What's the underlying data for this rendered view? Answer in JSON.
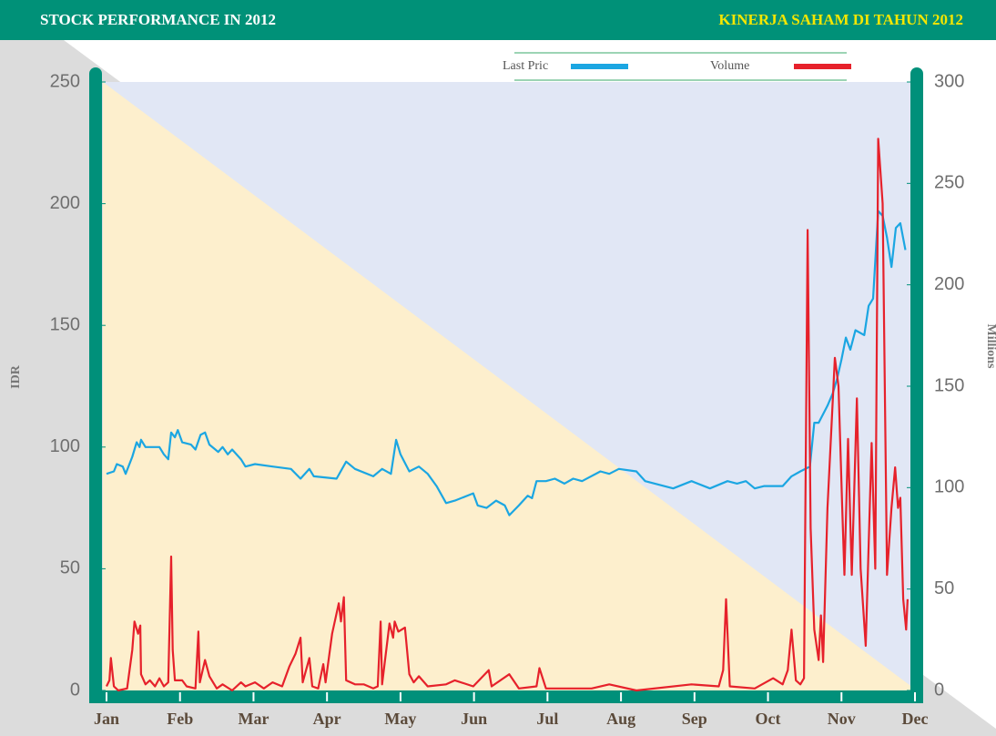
{
  "chart_data": {
    "type": "line",
    "title": "STOCK PERFORMANCE IN 2012",
    "subtitle": "KINERJA SAHAM DI TAHUN 2012",
    "y_label": "IDR",
    "y2_label": "Millions",
    "xlim": [
      0,
      11
    ],
    "xticks": [
      {
        "value": 0,
        "label": "Jan"
      },
      {
        "value": 1,
        "label": "Feb"
      },
      {
        "value": 2,
        "label": "Mar"
      },
      {
        "value": 3,
        "label": "Apr"
      },
      {
        "value": 4,
        "label": "May"
      },
      {
        "value": 5,
        "label": "Jun"
      },
      {
        "value": 6,
        "label": "Jul"
      },
      {
        "value": 7,
        "label": "Aug"
      },
      {
        "value": 8,
        "label": "Sep"
      },
      {
        "value": 9,
        "label": "Oct"
      },
      {
        "value": 10,
        "label": "Nov"
      },
      {
        "value": 11,
        "label": "Dec"
      }
    ],
    "ylim": [
      0,
      250
    ],
    "yticks": [
      0,
      50,
      100,
      150,
      200,
      250
    ],
    "y2lim": [
      0,
      300
    ],
    "y2ticks": [
      0,
      50,
      100,
      150,
      200,
      250,
      300
    ],
    "legend": "top",
    "series": [
      {
        "name": "Last Pric",
        "color": "#1ba6e2",
        "x": [
          0,
          0.1,
          0.14,
          0.22,
          0.26,
          0.35,
          0.41,
          0.45,
          0.47,
          0.53,
          0.72,
          0.78,
          0.84,
          0.88,
          0.93,
          0.97,
          1.03,
          1.15,
          1.21,
          1.28,
          1.34,
          1.4,
          1.52,
          1.58,
          1.65,
          1.71,
          1.83,
          1.89,
          2.02,
          2.26,
          2.51,
          2.64,
          2.76,
          2.82,
          3.13,
          3.26,
          3.38,
          3.63,
          3.75,
          3.87,
          3.94,
          4.0,
          4.12,
          4.25,
          4.37,
          4.49,
          4.62,
          4.74,
          4.99,
          5.05,
          5.17,
          5.3,
          5.42,
          5.48,
          5.61,
          5.73,
          5.79,
          5.85,
          5.98,
          6.1,
          6.23,
          6.35,
          6.47,
          6.72,
          6.84,
          6.97,
          7.21,
          7.33,
          7.46,
          7.71,
          7.96,
          8.21,
          8.45,
          8.58,
          8.7,
          8.82,
          8.95,
          9.2,
          9.32,
          9.44,
          9.57,
          9.63,
          9.69,
          9.81,
          9.88,
          9.94,
          10.0,
          10.06,
          10.12,
          10.19,
          10.31,
          10.37,
          10.43,
          10.5,
          10.56,
          10.62,
          10.68,
          10.74,
          10.8,
          10.87
        ],
        "values": [
          89,
          90,
          93,
          92,
          89,
          96,
          102,
          100,
          103,
          100,
          100,
          97,
          95,
          106,
          104,
          107,
          102,
          101,
          99,
          105,
          106,
          101,
          98,
          100,
          97,
          99,
          95,
          92,
          93,
          92,
          91,
          87,
          91,
          88,
          87,
          94,
          91,
          88,
          91,
          89,
          103,
          97,
          90,
          92,
          89,
          84,
          77,
          78,
          81,
          76,
          75,
          78,
          76,
          72,
          76,
          80,
          79,
          86,
          86,
          87,
          85,
          87,
          86,
          90,
          89,
          91,
          90,
          86,
          85,
          83,
          86,
          83,
          86,
          85,
          86,
          83,
          84,
          84,
          88,
          90,
          92,
          110,
          110,
          117,
          122,
          128,
          136,
          145,
          140,
          148,
          146,
          158,
          161,
          197,
          195,
          186,
          174,
          190,
          192,
          181
        ]
      },
      {
        "name": "Volume",
        "color": "#e6212b",
        "axis": "y2",
        "x": [
          0,
          0.04,
          0.06,
          0.1,
          0.16,
          0.28,
          0.35,
          0.38,
          0.43,
          0.46,
          0.47,
          0.53,
          0.59,
          0.66,
          0.72,
          0.78,
          0.84,
          0.88,
          0.9,
          0.93,
          1.03,
          1.09,
          1.21,
          1.25,
          1.27,
          1.34,
          1.4,
          1.5,
          1.58,
          1.71,
          1.83,
          1.89,
          2.02,
          2.14,
          2.26,
          2.39,
          2.49,
          2.57,
          2.64,
          2.67,
          2.76,
          2.8,
          2.88,
          2.95,
          2.98,
          3.07,
          3.16,
          3.19,
          3.23,
          3.26,
          3.38,
          3.5,
          3.63,
          3.69,
          3.73,
          3.75,
          3.85,
          3.9,
          3.92,
          3.97,
          4.06,
          4.12,
          4.18,
          4.25,
          4.37,
          4.62,
          4.74,
          4.99,
          5.2,
          5.24,
          5.48,
          5.61,
          5.85,
          5.89,
          5.98,
          6.6,
          6.84,
          7.21,
          7.96,
          8.33,
          8.39,
          8.43,
          8.48,
          8.82,
          9.07,
          9.2,
          9.27,
          9.32,
          9.38,
          9.44,
          9.49,
          9.54,
          9.58,
          9.63,
          9.69,
          9.72,
          9.75,
          9.81,
          9.91,
          9.96,
          10.01,
          10.04,
          10.09,
          10.14,
          10.21,
          10.26,
          10.33,
          10.41,
          10.46,
          10.5,
          10.56,
          10.62,
          10.68,
          10.73,
          10.77,
          10.8,
          10.84,
          10.88,
          10.9
        ],
        "values": [
          2,
          5,
          16,
          2,
          0,
          1,
          20,
          34,
          28,
          32,
          8,
          3,
          5,
          2,
          6,
          2,
          4,
          66,
          20,
          5,
          5,
          2,
          1,
          29,
          4,
          15,
          7,
          1,
          3,
          0,
          4,
          2,
          4,
          1,
          4,
          2,
          12,
          18,
          26,
          4,
          16,
          2,
          1,
          13,
          4,
          28,
          43,
          34,
          46,
          5,
          3,
          3,
          1,
          2,
          34,
          3,
          33,
          26,
          34,
          29,
          31,
          8,
          4,
          7,
          2,
          3,
          5,
          2,
          10,
          2,
          8,
          1,
          2,
          11,
          1,
          1,
          3,
          0,
          3,
          2,
          10,
          45,
          2,
          1,
          6,
          3,
          10,
          30,
          5,
          3,
          6,
          227,
          80,
          30,
          15,
          37,
          14,
          90,
          164,
          150,
          90,
          57,
          124,
          57,
          144,
          60,
          22,
          122,
          60,
          272,
          240,
          57,
          90,
          110,
          90,
          95,
          45,
          30,
          45
        ]
      }
    ]
  }
}
